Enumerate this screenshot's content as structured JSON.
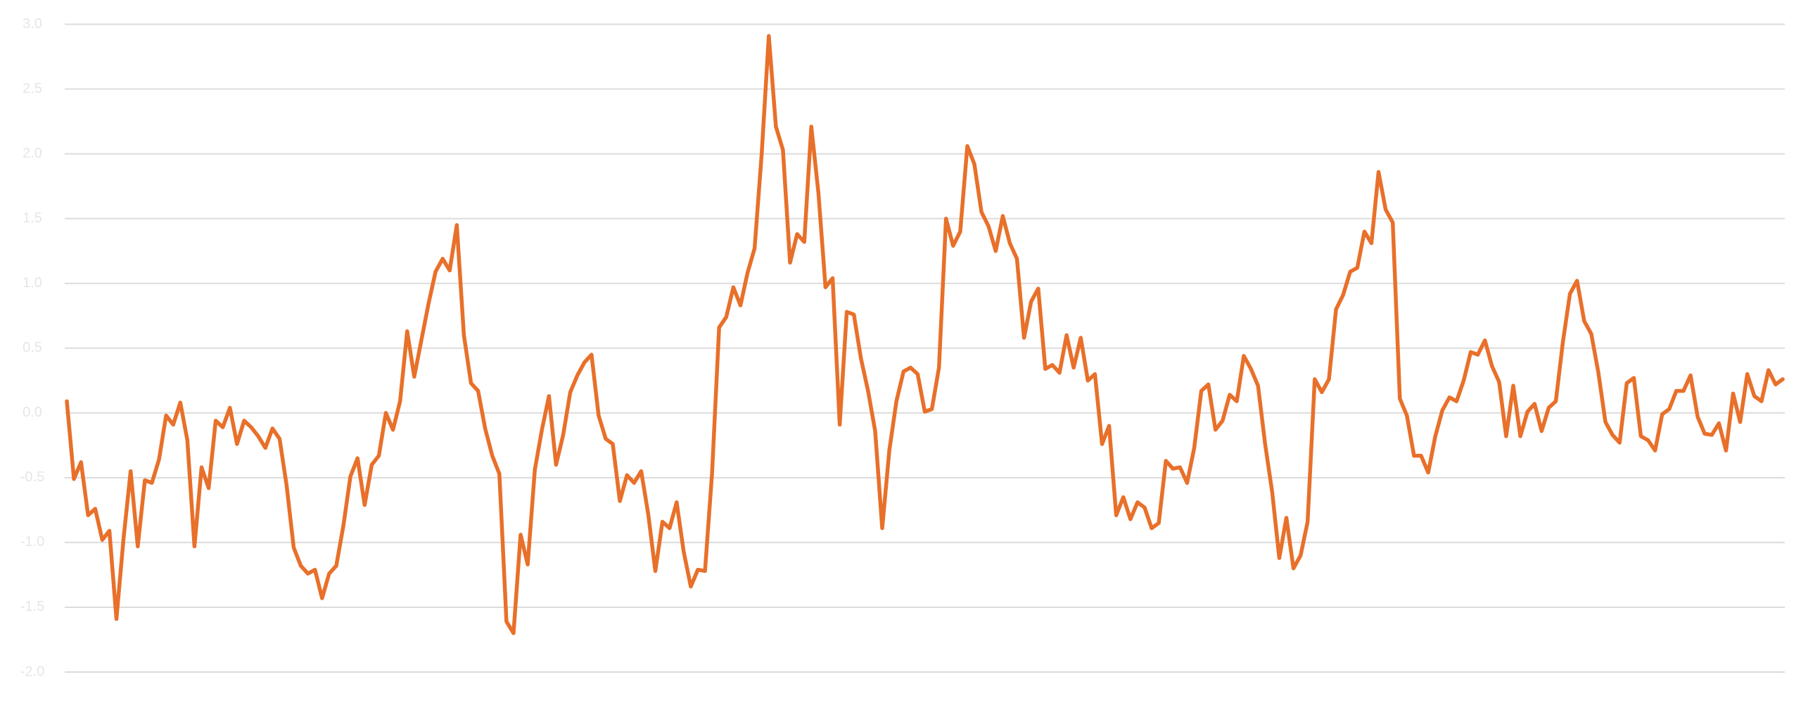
{
  "chart_data": {
    "type": "line",
    "color": "#e8702a",
    "grid": true,
    "ylim": [
      -2.0,
      3.0
    ],
    "yticks": [
      {
        "value": -2,
        "label": "-2.0"
      },
      -1.5,
      {
        "value": -1,
        "label": "-1.0"
      },
      -0.5,
      {
        "value": 0,
        "label": "0.0"
      },
      0.5,
      {
        "value": 1,
        "label": "1.0"
      },
      1.5,
      {
        "value": 2,
        "label": "2.0"
      },
      2.5,
      {
        "value": 3,
        "label": "3.0"
      }
    ],
    "values": [
      0.09,
      -0.51,
      -0.38,
      -0.79,
      -0.74,
      -0.98,
      -0.91,
      -1.59,
      -0.97,
      -0.45,
      -1.03,
      -0.52,
      -0.54,
      -0.36,
      -0.02,
      -0.09,
      0.08,
      -0.21,
      -1.03,
      -0.42,
      -0.58,
      -0.06,
      -0.11,
      0.04,
      -0.24,
      -0.06,
      -0.11,
      -0.18,
      -0.27,
      -0.12,
      -0.2,
      -0.56,
      -1.04,
      -1.18,
      -1.24,
      -1.21,
      -1.43,
      -1.24,
      -1.18,
      -0.87,
      -0.49,
      -0.35,
      -0.71,
      -0.4,
      -0.33,
      0.0,
      -0.13,
      0.09,
      0.63,
      0.28,
      0.56,
      0.84,
      1.09,
      1.19,
      1.1,
      1.45,
      0.6,
      0.23,
      0.17,
      -0.12,
      -0.33,
      -0.47,
      -1.61,
      -1.7,
      -0.94,
      -1.17,
      -0.44,
      -0.13,
      0.13,
      -0.4,
      -0.17,
      0.16,
      0.29,
      0.39,
      0.45,
      -0.02,
      -0.2,
      -0.24,
      -0.68,
      -0.48,
      -0.54,
      -0.45,
      -0.78,
      -1.22,
      -0.84,
      -0.89,
      -0.69,
      -1.07,
      -1.34,
      -1.21,
      -1.22,
      -0.47,
      0.66,
      0.74,
      0.97,
      0.83,
      1.08,
      1.27,
      2.0,
      2.91,
      2.21,
      2.03,
      1.16,
      1.38,
      1.32,
      2.21,
      1.7,
      0.97,
      1.04,
      -0.09,
      0.78,
      0.76,
      0.42,
      0.17,
      -0.14,
      -0.89,
      -0.29,
      0.09,
      0.32,
      0.35,
      0.3,
      0.01,
      0.03,
      0.35,
      1.5,
      1.29,
      1.4,
      2.06,
      1.92,
      1.55,
      1.44,
      1.25,
      1.52,
      1.31,
      1.19,
      0.58,
      0.86,
      0.96,
      0.34,
      0.37,
      0.31,
      0.6,
      0.35,
      0.58,
      0.25,
      0.3,
      -0.24,
      -0.1,
      -0.79,
      -0.65,
      -0.82,
      -0.69,
      -0.73,
      -0.89,
      -0.85,
      -0.37,
      -0.43,
      -0.42,
      -0.54,
      -0.27,
      0.17,
      0.22,
      -0.13,
      -0.06,
      0.14,
      0.09,
      0.44,
      0.34,
      0.21,
      -0.24,
      -0.61,
      -1.12,
      -0.81,
      -1.2,
      -1.1,
      -0.84,
      0.26,
      0.16,
      0.26,
      0.8,
      0.91,
      1.09,
      1.12,
      1.4,
      1.31,
      1.86,
      1.57,
      1.47,
      0.11,
      -0.02,
      -0.33,
      -0.33,
      -0.46,
      -0.18,
      0.02,
      0.12,
      0.09,
      0.25,
      0.47,
      0.45,
      0.56,
      0.36,
      0.24,
      -0.18,
      0.21,
      -0.18,
      0.01,
      0.07,
      -0.14,
      0.04,
      0.09,
      0.55,
      0.92,
      1.02,
      0.71,
      0.61,
      0.31,
      -0.07,
      -0.17,
      -0.23,
      0.23,
      0.27,
      -0.18,
      -0.21,
      -0.29,
      -0.01,
      0.03,
      0.17,
      0.17,
      0.29,
      -0.03,
      -0.16,
      -0.17,
      -0.08,
      -0.29,
      0.15,
      -0.07,
      0.3,
      0.13,
      0.09,
      0.33,
      0.22,
      0.26
    ]
  }
}
